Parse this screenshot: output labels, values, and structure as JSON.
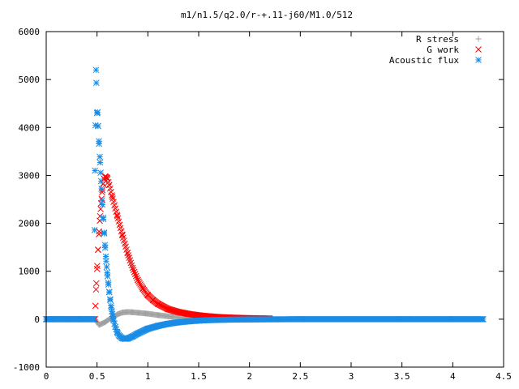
{
  "chart_data": {
    "type": "scatter",
    "title": "m1/n1.5/q2.0/r-+.11-j60/M1.0/512",
    "xlabel": "",
    "ylabel": "",
    "xlim": [
      0,
      4.5
    ],
    "ylim": [
      -1000,
      6000
    ],
    "x_ticks": [
      0,
      0.5,
      1,
      1.5,
      2,
      2.5,
      3,
      3.5,
      4,
      4.5
    ],
    "x_tick_labels": [
      "0",
      "0.5",
      "1",
      "1.5",
      "2",
      "2.5",
      "3",
      "3.5",
      "4",
      "4.5"
    ],
    "y_ticks": [
      -1000,
      0,
      1000,
      2000,
      3000,
      4000,
      5000,
      6000
    ],
    "y_tick_labels": [
      "-1000",
      "0",
      "1000",
      "2000",
      "3000",
      "4000",
      "5000",
      "6000"
    ],
    "grid": false,
    "legend_position": "top-right",
    "series": [
      {
        "name": "R stress",
        "marker": "plus",
        "color": "#a0a0a0",
        "x": [
          0,
          0.25,
          0.48,
          0.5,
          0.52,
          0.55,
          0.58,
          0.6,
          0.65,
          0.7,
          0.75,
          0.8,
          0.85,
          0.9,
          1.0,
          1.1,
          1.2,
          1.3,
          1.4,
          1.5,
          1.6,
          1.8,
          2.0,
          2.2
        ],
        "y": [
          0,
          0,
          0,
          -60,
          -120,
          -90,
          -60,
          -30,
          40,
          100,
          140,
          150,
          145,
          135,
          115,
          85,
          60,
          40,
          28,
          18,
          12,
          6,
          3,
          0
        ]
      },
      {
        "name": "G work",
        "marker": "x",
        "color": "#ff0000",
        "x": [
          0,
          0.25,
          0.48,
          0.49,
          0.5,
          0.51,
          0.52,
          0.53,
          0.54,
          0.55,
          0.56,
          0.57,
          0.58,
          0.6,
          0.62,
          0.65,
          0.7,
          0.75,
          0.8,
          0.85,
          0.9,
          0.95,
          1.0,
          1.05,
          1.1,
          1.2,
          1.3,
          1.4,
          1.5,
          1.6,
          1.7,
          1.8,
          2.0,
          2.2
        ],
        "y": [
          0,
          0,
          0,
          620,
          1050,
          1450,
          1830,
          2150,
          2420,
          2650,
          2820,
          2930,
          2980,
          2950,
          2800,
          2550,
          2150,
          1750,
          1380,
          1070,
          820,
          640,
          500,
          400,
          320,
          210,
          150,
          110,
          80,
          60,
          45,
          35,
          22,
          15
        ]
      },
      {
        "name": "Acoustic flux",
        "marker": "star",
        "color": "#1a8ce6",
        "x": [
          0,
          0.1,
          0.2,
          0.3,
          0.4,
          0.45,
          0.47,
          0.48,
          0.49,
          0.5,
          0.505,
          0.51,
          0.52,
          0.53,
          0.54,
          0.55,
          0.56,
          0.57,
          0.58,
          0.59,
          0.6,
          0.61,
          0.62,
          0.63,
          0.64,
          0.65,
          0.66,
          0.68,
          0.7,
          0.72,
          0.75,
          0.78,
          0.8,
          0.85,
          0.9,
          1.0,
          1.1,
          1.2,
          1.3,
          1.4,
          1.5,
          1.6,
          1.8,
          2.0,
          2.5,
          3.0,
          3.5,
          4.0,
          4.3
        ],
        "y": [
          0,
          0,
          0,
          0,
          0,
          0,
          0,
          3100,
          5200,
          4300,
          4320,
          4030,
          3660,
          3270,
          2880,
          2480,
          2120,
          1790,
          1490,
          1210,
          970,
          760,
          570,
          400,
          240,
          110,
          0,
          -160,
          -280,
          -350,
          -400,
          -410,
          -405,
          -360,
          -300,
          -200,
          -140,
          -95,
          -65,
          -45,
          -30,
          -20,
          -10,
          -5,
          0,
          0,
          0,
          0,
          0
        ]
      }
    ]
  }
}
